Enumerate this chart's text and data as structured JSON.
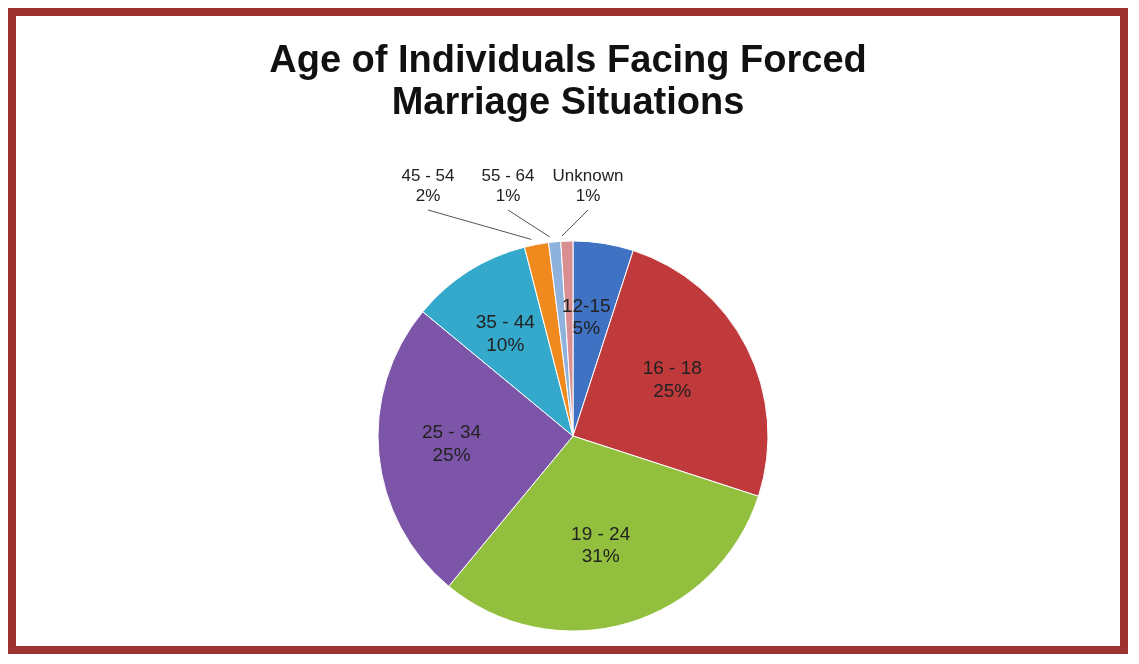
{
  "chart_data": {
    "type": "pie",
    "title": "Age of Individuals Facing Forced Marriage Situations",
    "categories": [
      "12-15",
      "16 - 18",
      "19 - 24",
      "25 - 34",
      "35 - 44",
      "45 - 54",
      "55 - 64",
      "Unknown"
    ],
    "values": [
      5,
      25,
      31,
      25,
      10,
      2,
      1,
      1
    ],
    "value_labels": [
      "5%",
      "25%",
      "31%",
      "25%",
      "10%",
      "2%",
      "1%",
      "1%"
    ],
    "colors": [
      "#3f72c2",
      "#c0393b",
      "#93bf3e",
      "#7d55a8",
      "#35a9cc",
      "#f08a1e",
      "#8fb2dc",
      "#d98f8f"
    ],
    "legend": false
  }
}
